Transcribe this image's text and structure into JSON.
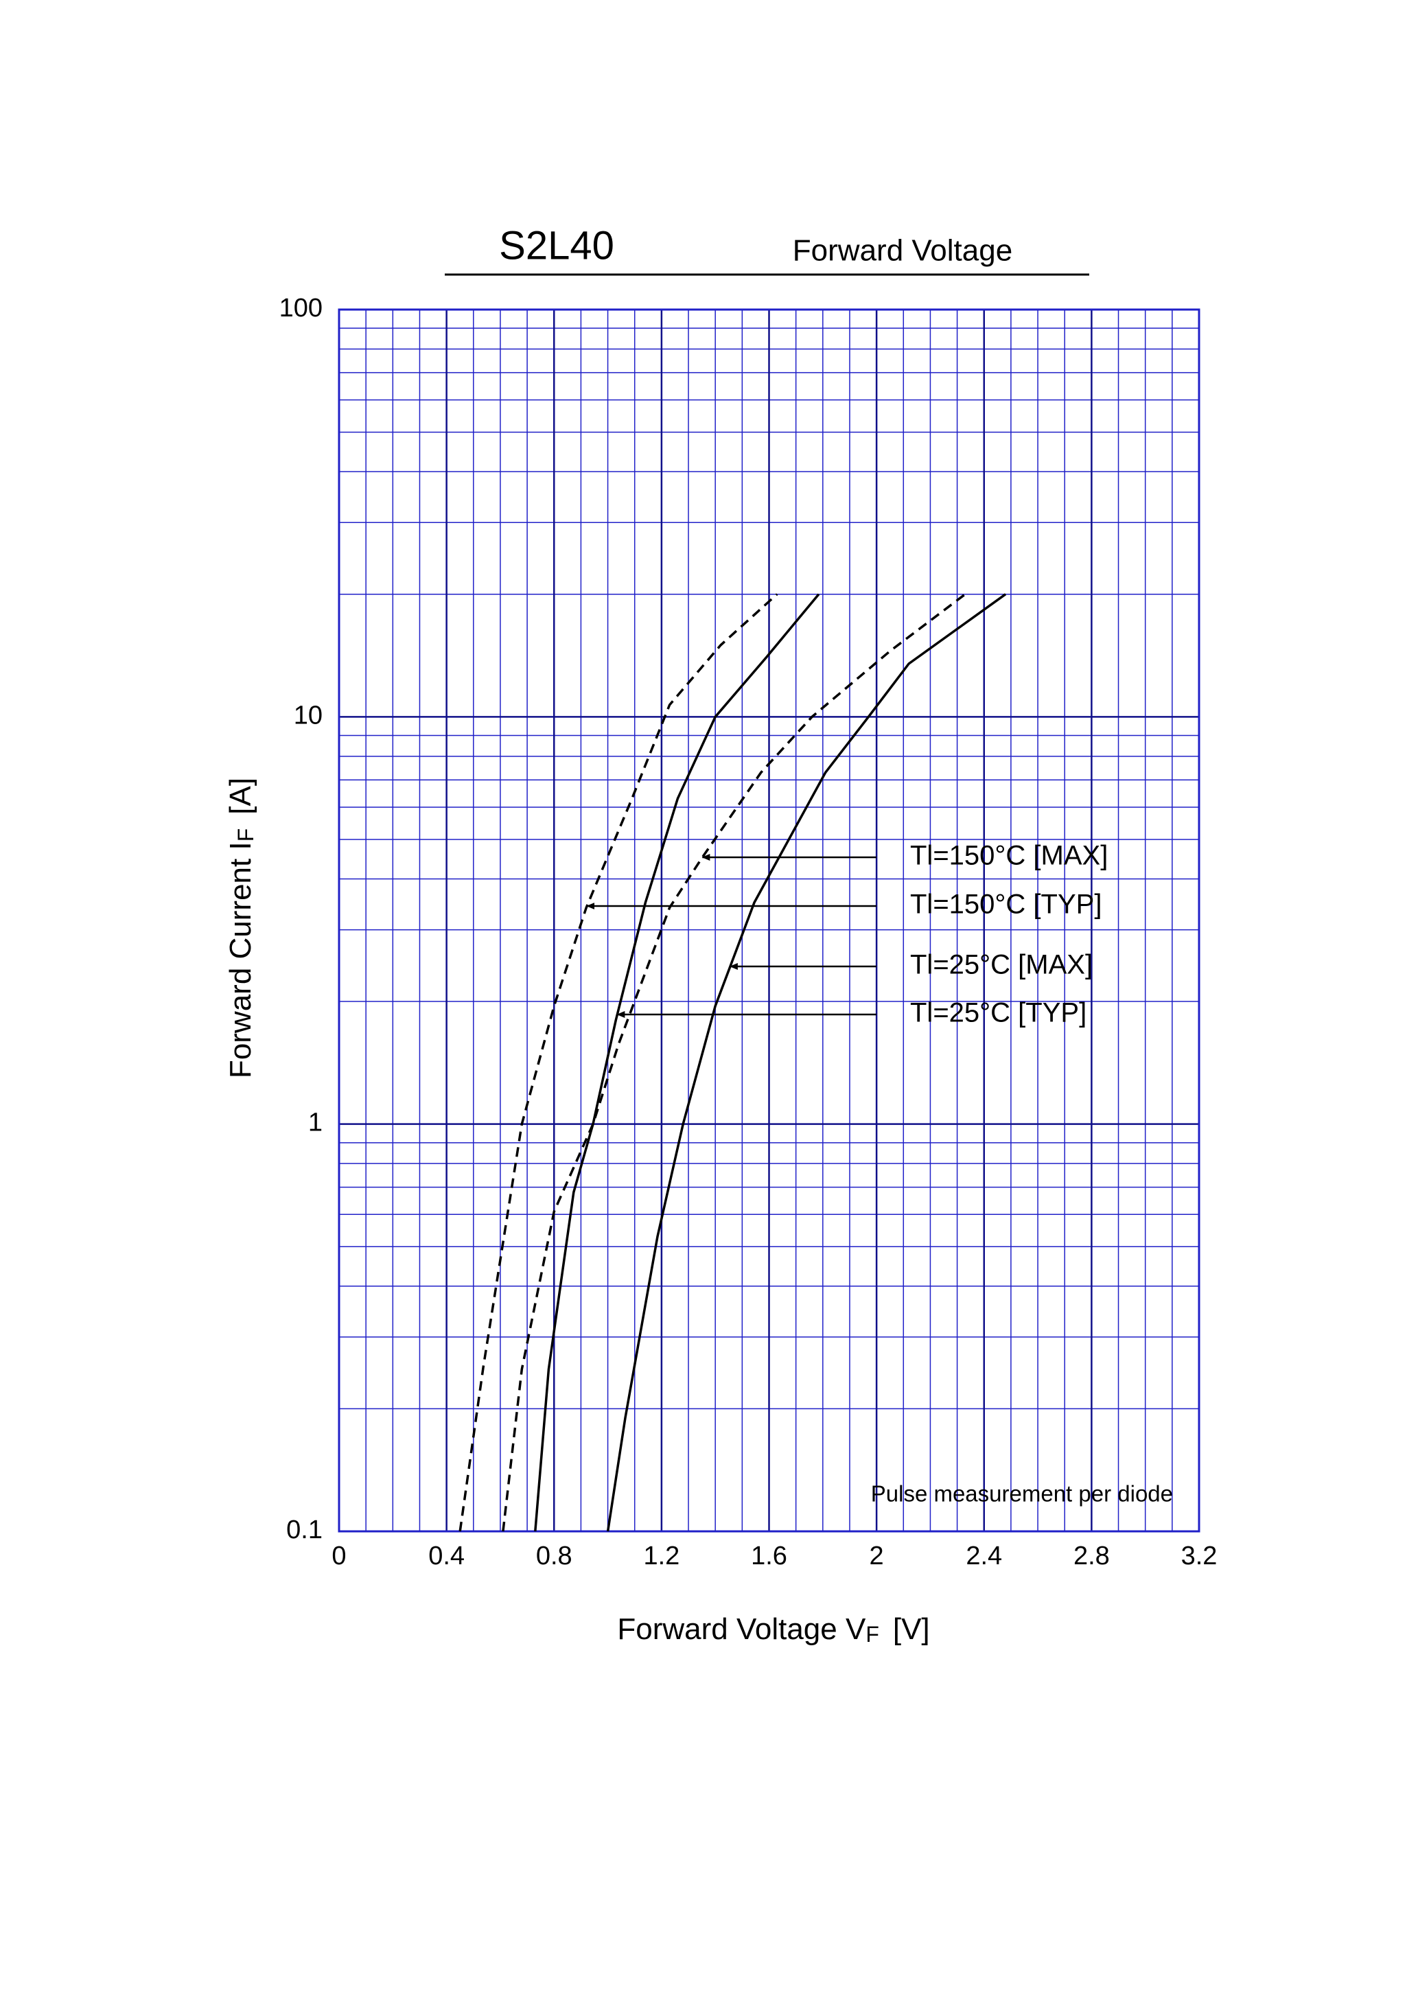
{
  "chart_data": {
    "type": "line",
    "title": "S2L40",
    "subtitle": "Forward Voltage",
    "x_label": {
      "text": "Forward Voltage  V",
      "sub": "F",
      "unit": "[V]"
    },
    "y_label": {
      "text": "Forward Current  I",
      "sub": "F",
      "unit": "[A]"
    },
    "note": "Pulse measurement per diode",
    "log_y": true,
    "grid": true,
    "minor_grid": true,
    "grid_color": "#2020c8",
    "xlim": [
      0,
      3.2
    ],
    "xticks": [
      0,
      0.4,
      0.8,
      1.2,
      1.6,
      2,
      2.4,
      2.8,
      3.2
    ],
    "ylim": [
      0.1,
      100
    ],
    "yticks": [
      0.1,
      1,
      10,
      100
    ],
    "series": [
      {
        "name": "Tl=150°C [MAX]",
        "color": "#000000",
        "dashed": true,
        "x": [
          0.61,
          0.68,
          0.8,
          0.945,
          1.04,
          1.23,
          1.35,
          1.57,
          1.76,
          2.05,
          2.33
        ],
        "values": [
          0.1,
          0.25,
          0.61,
          1,
          1.57,
          3.4,
          4.5,
          7.3,
          10,
          14.5,
          20
        ]
      },
      {
        "name": "Tl=150°C [TYP]",
        "color": "#000000",
        "dashed": true,
        "x": [
          0.45,
          0.537,
          0.68,
          0.8,
          0.92,
          1.09,
          1.23,
          1.42,
          1.63
        ],
        "values": [
          0.1,
          0.254,
          1,
          1.95,
          3.4,
          6.3,
          10.7,
          15,
          20
        ]
      },
      {
        "name": "Tl=25°C [MAX]",
        "color": "#000000",
        "dashed": false,
        "x": [
          1.0,
          1.065,
          1.185,
          1.28,
          1.4,
          1.545,
          1.81,
          1.97,
          2.12,
          2.48
        ],
        "values": [
          0.1,
          0.19,
          0.53,
          1,
          1.95,
          3.5,
          7.3,
          10,
          13.5,
          20
        ]
      },
      {
        "name": "Tl=25°C [TYP]",
        "color": "#000000",
        "dashed": false,
        "x": [
          0.73,
          0.78,
          0.873,
          0.945,
          1.03,
          1.14,
          1.26,
          1.4,
          1.59,
          1.785
        ],
        "values": [
          0.1,
          0.25,
          0.68,
          1,
          1.8,
          3.5,
          6.3,
          10,
          14,
          20
        ]
      }
    ]
  }
}
